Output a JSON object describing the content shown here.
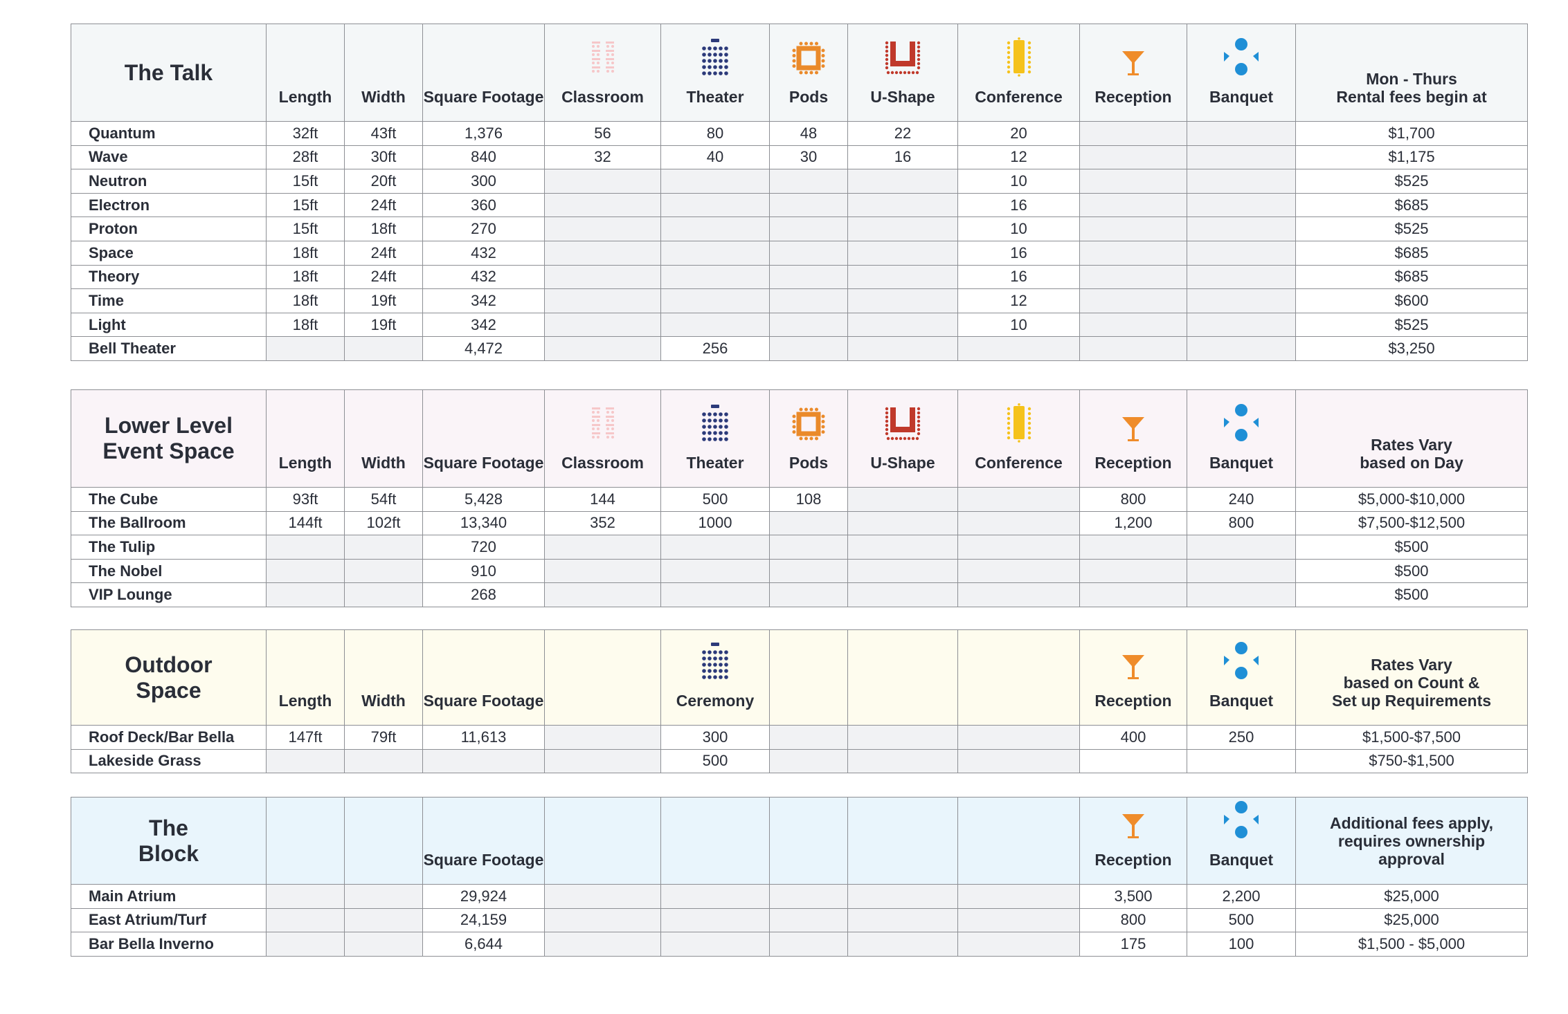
{
  "columns": {
    "length": "Length",
    "width": "Width",
    "square_footage": "Square Footage",
    "classroom": "Classroom",
    "theater": "Theater",
    "pods": "Pods",
    "ushape": "U-Shape",
    "conference": "Conference",
    "reception": "Reception",
    "banquet": "Banquet",
    "ceremony": "Ceremony"
  },
  "icons": {
    "classroom": {
      "name": "classroom-icon",
      "color": "#f6c7c9"
    },
    "theater": {
      "name": "theater-icon",
      "color": "#2c3a7a"
    },
    "pods": {
      "name": "pods-icon",
      "color": "#ea8a2a"
    },
    "ushape": {
      "name": "ushape-icon",
      "color": "#c0392b"
    },
    "conference": {
      "name": "conference-icon",
      "color": "#f5c21b"
    },
    "reception": {
      "name": "cocktail-glass-icon",
      "color": "#ef8c2a"
    },
    "banquet": {
      "name": "banquet-icon",
      "color": "#1f8fd6"
    }
  },
  "sections": [
    {
      "id": "talk",
      "title_lines": [
        "The Talk"
      ],
      "fee_lines": [
        "Mon - Thurs",
        "Rental fees begin at"
      ],
      "rows": [
        {
          "name": "Quantum",
          "length": "32ft",
          "width": "43ft",
          "sqft": "1,376",
          "classroom": "56",
          "theater": "80",
          "pods": "48",
          "ushape": "22",
          "conference": "20",
          "reception": "",
          "banquet": "",
          "fee": "$1,700"
        },
        {
          "name": "Wave",
          "length": "28ft",
          "width": "30ft",
          "sqft": "840",
          "classroom": "32",
          "theater": "40",
          "pods": "30",
          "ushape": "16",
          "conference": "12",
          "reception": "",
          "banquet": "",
          "fee": "$1,175"
        },
        {
          "name": "Neutron",
          "length": "15ft",
          "width": "20ft",
          "sqft": "300",
          "classroom": "",
          "theater": "",
          "pods": "",
          "ushape": "",
          "conference": "10",
          "reception": "",
          "banquet": "",
          "fee": "$525"
        },
        {
          "name": "Electron",
          "length": "15ft",
          "width": "24ft",
          "sqft": "360",
          "classroom": "",
          "theater": "",
          "pods": "",
          "ushape": "",
          "conference": "16",
          "reception": "",
          "banquet": "",
          "fee": "$685"
        },
        {
          "name": "Proton",
          "length": "15ft",
          "width": "18ft",
          "sqft": "270",
          "classroom": "",
          "theater": "",
          "pods": "",
          "ushape": "",
          "conference": "10",
          "reception": "",
          "banquet": "",
          "fee": "$525"
        },
        {
          "name": "Space",
          "length": "18ft",
          "width": "24ft",
          "sqft": "432",
          "classroom": "",
          "theater": "",
          "pods": "",
          "ushape": "",
          "conference": "16",
          "reception": "",
          "banquet": "",
          "fee": "$685"
        },
        {
          "name": "Theory",
          "length": "18ft",
          "width": "24ft",
          "sqft": "432",
          "classroom": "",
          "theater": "",
          "pods": "",
          "ushape": "",
          "conference": "16",
          "reception": "",
          "banquet": "",
          "fee": "$685"
        },
        {
          "name": "Time",
          "length": "18ft",
          "width": "19ft",
          "sqft": "342",
          "classroom": "",
          "theater": "",
          "pods": "",
          "ushape": "",
          "conference": "12",
          "reception": "",
          "banquet": "",
          "fee": "$600"
        },
        {
          "name": "Light",
          "length": "18ft",
          "width": "19ft",
          "sqft": "342",
          "classroom": "",
          "theater": "",
          "pods": "",
          "ushape": "",
          "conference": "10",
          "reception": "",
          "banquet": "",
          "fee": "$525"
        },
        {
          "name": "Bell Theater",
          "length": "",
          "width": "",
          "sqft": "4,472",
          "classroom": "",
          "theater": "256",
          "pods": "",
          "ushape": "",
          "conference": "",
          "reception": "",
          "banquet": "",
          "fee": "$3,250"
        }
      ]
    },
    {
      "id": "lower",
      "title_lines": [
        "Lower Level",
        "Event Space"
      ],
      "fee_lines": [
        "Rates Vary",
        "based on Day"
      ],
      "rows": [
        {
          "name": "The Cube",
          "length": "93ft",
          "width": "54ft",
          "sqft": "5,428",
          "classroom": "144",
          "theater": "500",
          "pods": "108",
          "ushape": "",
          "conference": "",
          "reception": "800",
          "banquet": "240",
          "fee": "$5,000-$10,000"
        },
        {
          "name": "The Ballroom",
          "length": "144ft",
          "width": "102ft",
          "sqft": "13,340",
          "classroom": "352",
          "theater": "1000",
          "pods": "",
          "ushape": "",
          "conference": "",
          "reception": "1,200",
          "banquet": "800",
          "fee": "$7,500-$12,500"
        },
        {
          "name": "The Tulip",
          "length": "",
          "width": "",
          "sqft": "720",
          "classroom": "",
          "theater": "",
          "pods": "",
          "ushape": "",
          "conference": "",
          "reception": "",
          "banquet": "",
          "fee": "$500"
        },
        {
          "name": "The Nobel",
          "length": "",
          "width": "",
          "sqft": "910",
          "classroom": "",
          "theater": "",
          "pods": "",
          "ushape": "",
          "conference": "",
          "reception": "",
          "banquet": "",
          "fee": "$500"
        },
        {
          "name": "VIP Lounge",
          "length": "",
          "width": "",
          "sqft": "268",
          "classroom": "",
          "theater": "",
          "pods": "",
          "ushape": "",
          "conference": "",
          "reception": "",
          "banquet": "",
          "fee": "$500"
        }
      ]
    },
    {
      "id": "outdoor",
      "title_lines": [
        "Outdoor",
        "Space"
      ],
      "fee_lines": [
        "Rates Vary",
        "based on Count &",
        "Set up Requirements"
      ],
      "rows": [
        {
          "name": "Roof Deck/Bar Bella",
          "length": "147ft",
          "width": "79ft",
          "sqft": "11,613",
          "classroom": "",
          "theater": "300",
          "pods": "",
          "ushape": "",
          "conference": "",
          "reception": "400",
          "banquet": "250",
          "fee": "$1,500-$7,500"
        },
        {
          "name": "Lakeside Grass",
          "length": "",
          "width": "",
          "sqft": "",
          "classroom": "",
          "theater": "500",
          "pods": "",
          "ushape": "",
          "conference": "",
          "reception": "",
          "banquet": "",
          "fee": "$750-$1,500"
        }
      ]
    },
    {
      "id": "block",
      "title_lines": [
        "The",
        "Block"
      ],
      "fee_lines": [
        "Additional fees apply,",
        "requires ownership",
        "approval"
      ],
      "rows": [
        {
          "name": "Main Atrium",
          "length": "",
          "width": "",
          "sqft": "29,924",
          "classroom": "",
          "theater": "",
          "pods": "",
          "ushape": "",
          "conference": "",
          "reception": "3,500",
          "banquet": "2,200",
          "fee": "$25,000"
        },
        {
          "name": "East Atrium/Turf",
          "length": "",
          "width": "",
          "sqft": "24,159",
          "classroom": "",
          "theater": "",
          "pods": "",
          "ushape": "",
          "conference": "",
          "reception": "800",
          "banquet": "500",
          "fee": "$25,000"
        },
        {
          "name": "Bar Bella Inverno",
          "length": "",
          "width": "",
          "sqft": "6,644",
          "classroom": "",
          "theater": "",
          "pods": "",
          "ushape": "",
          "conference": "",
          "reception": "175",
          "banquet": "100",
          "fee": "$1,500 - $5,000"
        }
      ]
    }
  ]
}
